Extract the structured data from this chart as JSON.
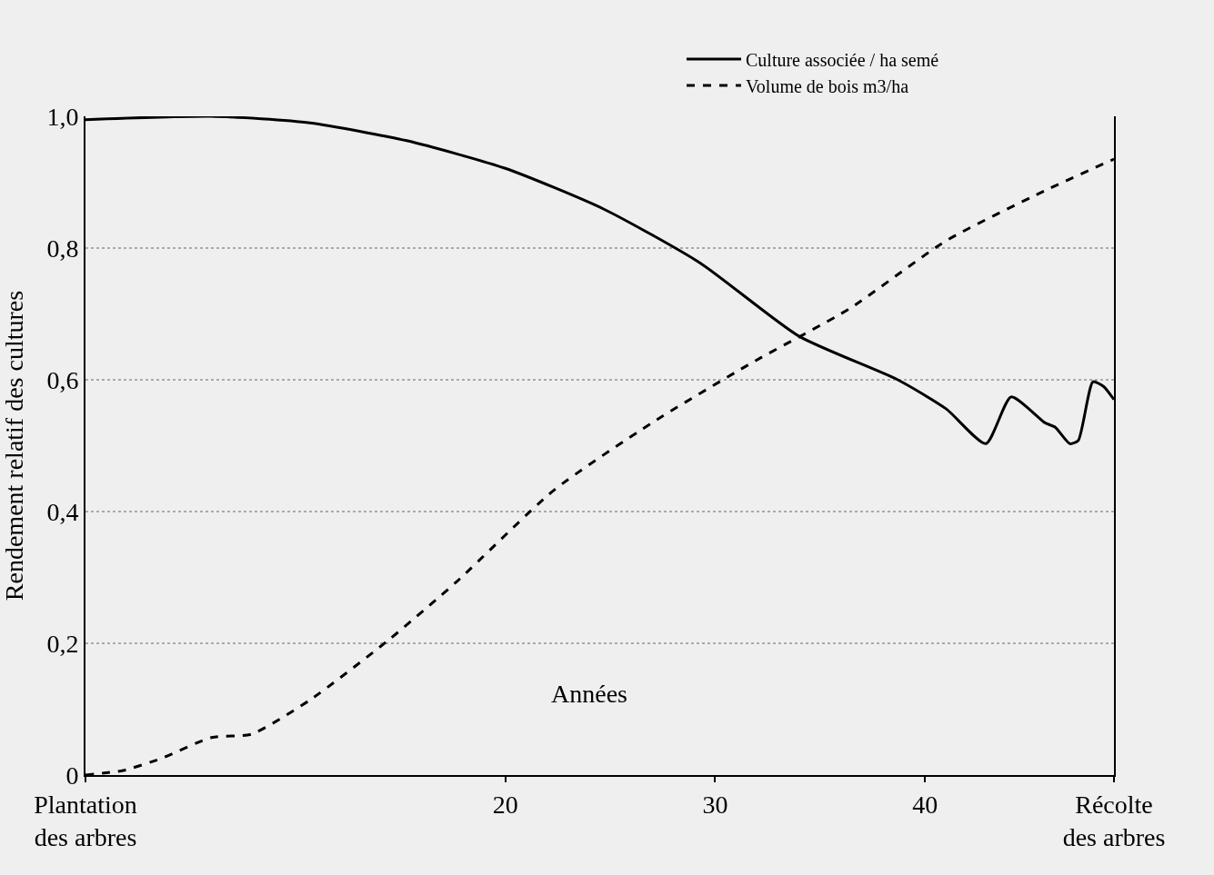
{
  "chart_data": {
    "type": "line",
    "xlabel": "Années",
    "ylabel": "Rendement relatif des cultures",
    "x": [
      0,
      6,
      10.7,
      15.3,
      20,
      24.7,
      29.3,
      34,
      38.7,
      41,
      42.9,
      44.1,
      45.7,
      46.2,
      46.9,
      47.3,
      48.0,
      48.5,
      49
    ],
    "series": [
      {
        "name": "Culture associée / ha semé",
        "color": "#000000",
        "line_style": "solid",
        "values": [
          0.995,
          1.0,
          0.99,
          0.963,
          0.921,
          0.859,
          0.777,
          0.666,
          0.6,
          0.556,
          0.503,
          0.574,
          0.535,
          0.528,
          0.503,
          0.508,
          0.597,
          0.59,
          0.57
        ]
      },
      {
        "name": "Volume de bois m3/ha",
        "color": "#000000",
        "line_style": "dashed",
        "x": [
          0,
          1.8,
          3.6,
          6,
          7.9,
          10.7,
          14.4,
          17.7,
          22.3,
          27,
          31.7,
          36.4,
          41,
          45.7,
          49
        ],
        "values": [
          0,
          0.007,
          0.025,
          0.057,
          0.062,
          0.114,
          0.204,
          0.294,
          0.432,
          0.535,
          0.625,
          0.708,
          0.811,
          0.887,
          0.935
        ]
      }
    ],
    "xlim": [
      0,
      49
    ],
    "xticks": [
      {
        "value": 0,
        "label": "Plantation\ndes arbres"
      },
      20,
      30,
      40,
      {
        "value": 49,
        "label": "Récolte\ndes arbres"
      }
    ],
    "ylim": [
      0,
      1.0
    ],
    "yticks": [
      0,
      {
        "value": 0.2,
        "label": "0,2"
      },
      {
        "value": 0.4,
        "label": "0,4"
      },
      {
        "value": 0.6,
        "label": "0,6"
      },
      {
        "value": 0.8,
        "label": "0,8"
      },
      {
        "value": 1.0,
        "label": "1,0"
      }
    ],
    "grid": "y",
    "legend": "top right",
    "marker": "none"
  }
}
